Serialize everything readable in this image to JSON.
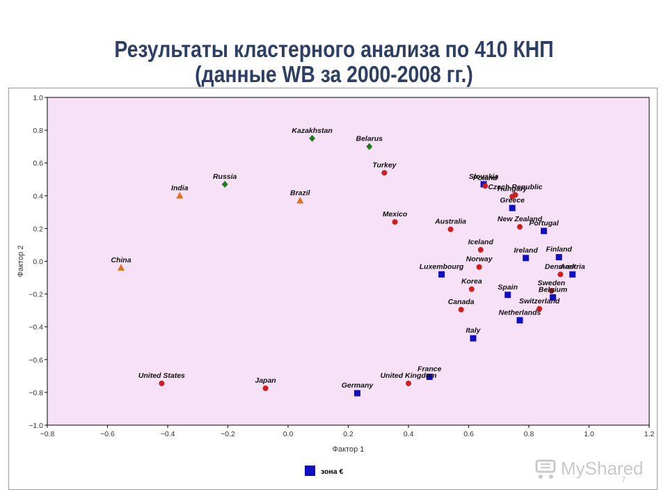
{
  "slide": {
    "title_line1": "Результаты кластерного анализа по 410 КНП",
    "title_line2": "(данные WB за 2000-2008 гг.)",
    "watermark": "MyShared",
    "page_number": "7"
  },
  "chart_data": {
    "type": "scatter",
    "title": "",
    "xlabel": "Фактор 1",
    "ylabel": "Фактор 2",
    "xlim": [
      -0.8,
      1.2
    ],
    "ylim": [
      -1.0,
      1.0
    ],
    "xticks": [
      "−0.8",
      "−0.6",
      "−0.4",
      "−0.2",
      "0.0",
      "0.2",
      "0.4",
      "0.6",
      "0.8",
      "1.0",
      "1.2"
    ],
    "yticks": [
      "1.0",
      "0.8",
      "0.6",
      "0.4",
      "0.2",
      "0.0",
      "−0.2",
      "−0.4",
      "−0.6",
      "−0.8",
      "−1.0"
    ],
    "grid": false,
    "plot_background": "#f7e1f7",
    "legend": {
      "placement": "bottom",
      "entries": [
        {
          "label": "зона €",
          "color": "#1010c0",
          "marker": "square"
        }
      ]
    },
    "marker_colors": {
      "circle": "#cc2020",
      "square": "#1010c0",
      "triangle": "#e07020",
      "diamond": "#207a20"
    },
    "points": [
      {
        "label": "Kazakhstan",
        "x": 0.08,
        "y": 0.75,
        "marker": "diamond"
      },
      {
        "label": "Belarus",
        "x": 0.27,
        "y": 0.7,
        "marker": "diamond"
      },
      {
        "label": "Russia",
        "x": -0.21,
        "y": 0.47,
        "marker": "diamond"
      },
      {
        "label": "India",
        "x": -0.36,
        "y": 0.4,
        "marker": "triangle"
      },
      {
        "label": "Brazil",
        "x": 0.04,
        "y": 0.37,
        "marker": "triangle"
      },
      {
        "label": "China",
        "x": -0.555,
        "y": -0.04,
        "marker": "triangle"
      },
      {
        "label": "Turkey",
        "x": 0.32,
        "y": 0.54,
        "marker": "circle"
      },
      {
        "label": "Mexico",
        "x": 0.355,
        "y": 0.24,
        "marker": "circle"
      },
      {
        "label": "Australia",
        "x": 0.54,
        "y": 0.195,
        "marker": "circle"
      },
      {
        "label": "Slovakia",
        "x": 0.65,
        "y": 0.47,
        "marker": "square"
      },
      {
        "label": "Poland",
        "x": 0.655,
        "y": 0.46,
        "marker": "circle"
      },
      {
        "label": "Czech Republic",
        "x": 0.755,
        "y": 0.405,
        "marker": "circle"
      },
      {
        "label": "Hungary",
        "x": 0.745,
        "y": 0.395,
        "marker": "circle"
      },
      {
        "label": "Greece",
        "x": 0.745,
        "y": 0.325,
        "marker": "square"
      },
      {
        "label": "New Zealand",
        "x": 0.77,
        "y": 0.21,
        "marker": "circle"
      },
      {
        "label": "Portugal",
        "x": 0.85,
        "y": 0.185,
        "marker": "square"
      },
      {
        "label": "Iceland",
        "x": 0.64,
        "y": 0.07,
        "marker": "circle"
      },
      {
        "label": "Ireland",
        "x": 0.79,
        "y": 0.02,
        "marker": "square"
      },
      {
        "label": "Finland",
        "x": 0.9,
        "y": 0.025,
        "marker": "square"
      },
      {
        "label": "Norway",
        "x": 0.635,
        "y": -0.035,
        "marker": "circle"
      },
      {
        "label": "Luxembourg",
        "x": 0.51,
        "y": -0.08,
        "marker": "square"
      },
      {
        "label": "Denmark",
        "x": 0.905,
        "y": -0.08,
        "marker": "circle"
      },
      {
        "label": "Austria",
        "x": 0.945,
        "y": -0.08,
        "marker": "square"
      },
      {
        "label": "Korea",
        "x": 0.61,
        "y": -0.17,
        "marker": "circle"
      },
      {
        "label": "Spain",
        "x": 0.73,
        "y": -0.205,
        "marker": "square"
      },
      {
        "label": "Sweden",
        "x": 0.875,
        "y": -0.18,
        "marker": "circle"
      },
      {
        "label": "Belgium",
        "x": 0.88,
        "y": -0.22,
        "marker": "square"
      },
      {
        "label": "Canada",
        "x": 0.575,
        "y": -0.295,
        "marker": "circle"
      },
      {
        "label": "Switzerland",
        "x": 0.835,
        "y": -0.29,
        "marker": "circle"
      },
      {
        "label": "Netherlands",
        "x": 0.77,
        "y": -0.36,
        "marker": "square"
      },
      {
        "label": "Italy",
        "x": 0.615,
        "y": -0.47,
        "marker": "square"
      },
      {
        "label": "France",
        "x": 0.47,
        "y": -0.705,
        "marker": "square"
      },
      {
        "label": "United Kingdom",
        "x": 0.4,
        "y": -0.745,
        "marker": "circle"
      },
      {
        "label": "United States",
        "x": -0.42,
        "y": -0.745,
        "marker": "circle"
      },
      {
        "label": "Japan",
        "x": -0.075,
        "y": -0.775,
        "marker": "circle"
      },
      {
        "label": "Germany",
        "x": 0.23,
        "y": -0.805,
        "marker": "square"
      }
    ]
  }
}
